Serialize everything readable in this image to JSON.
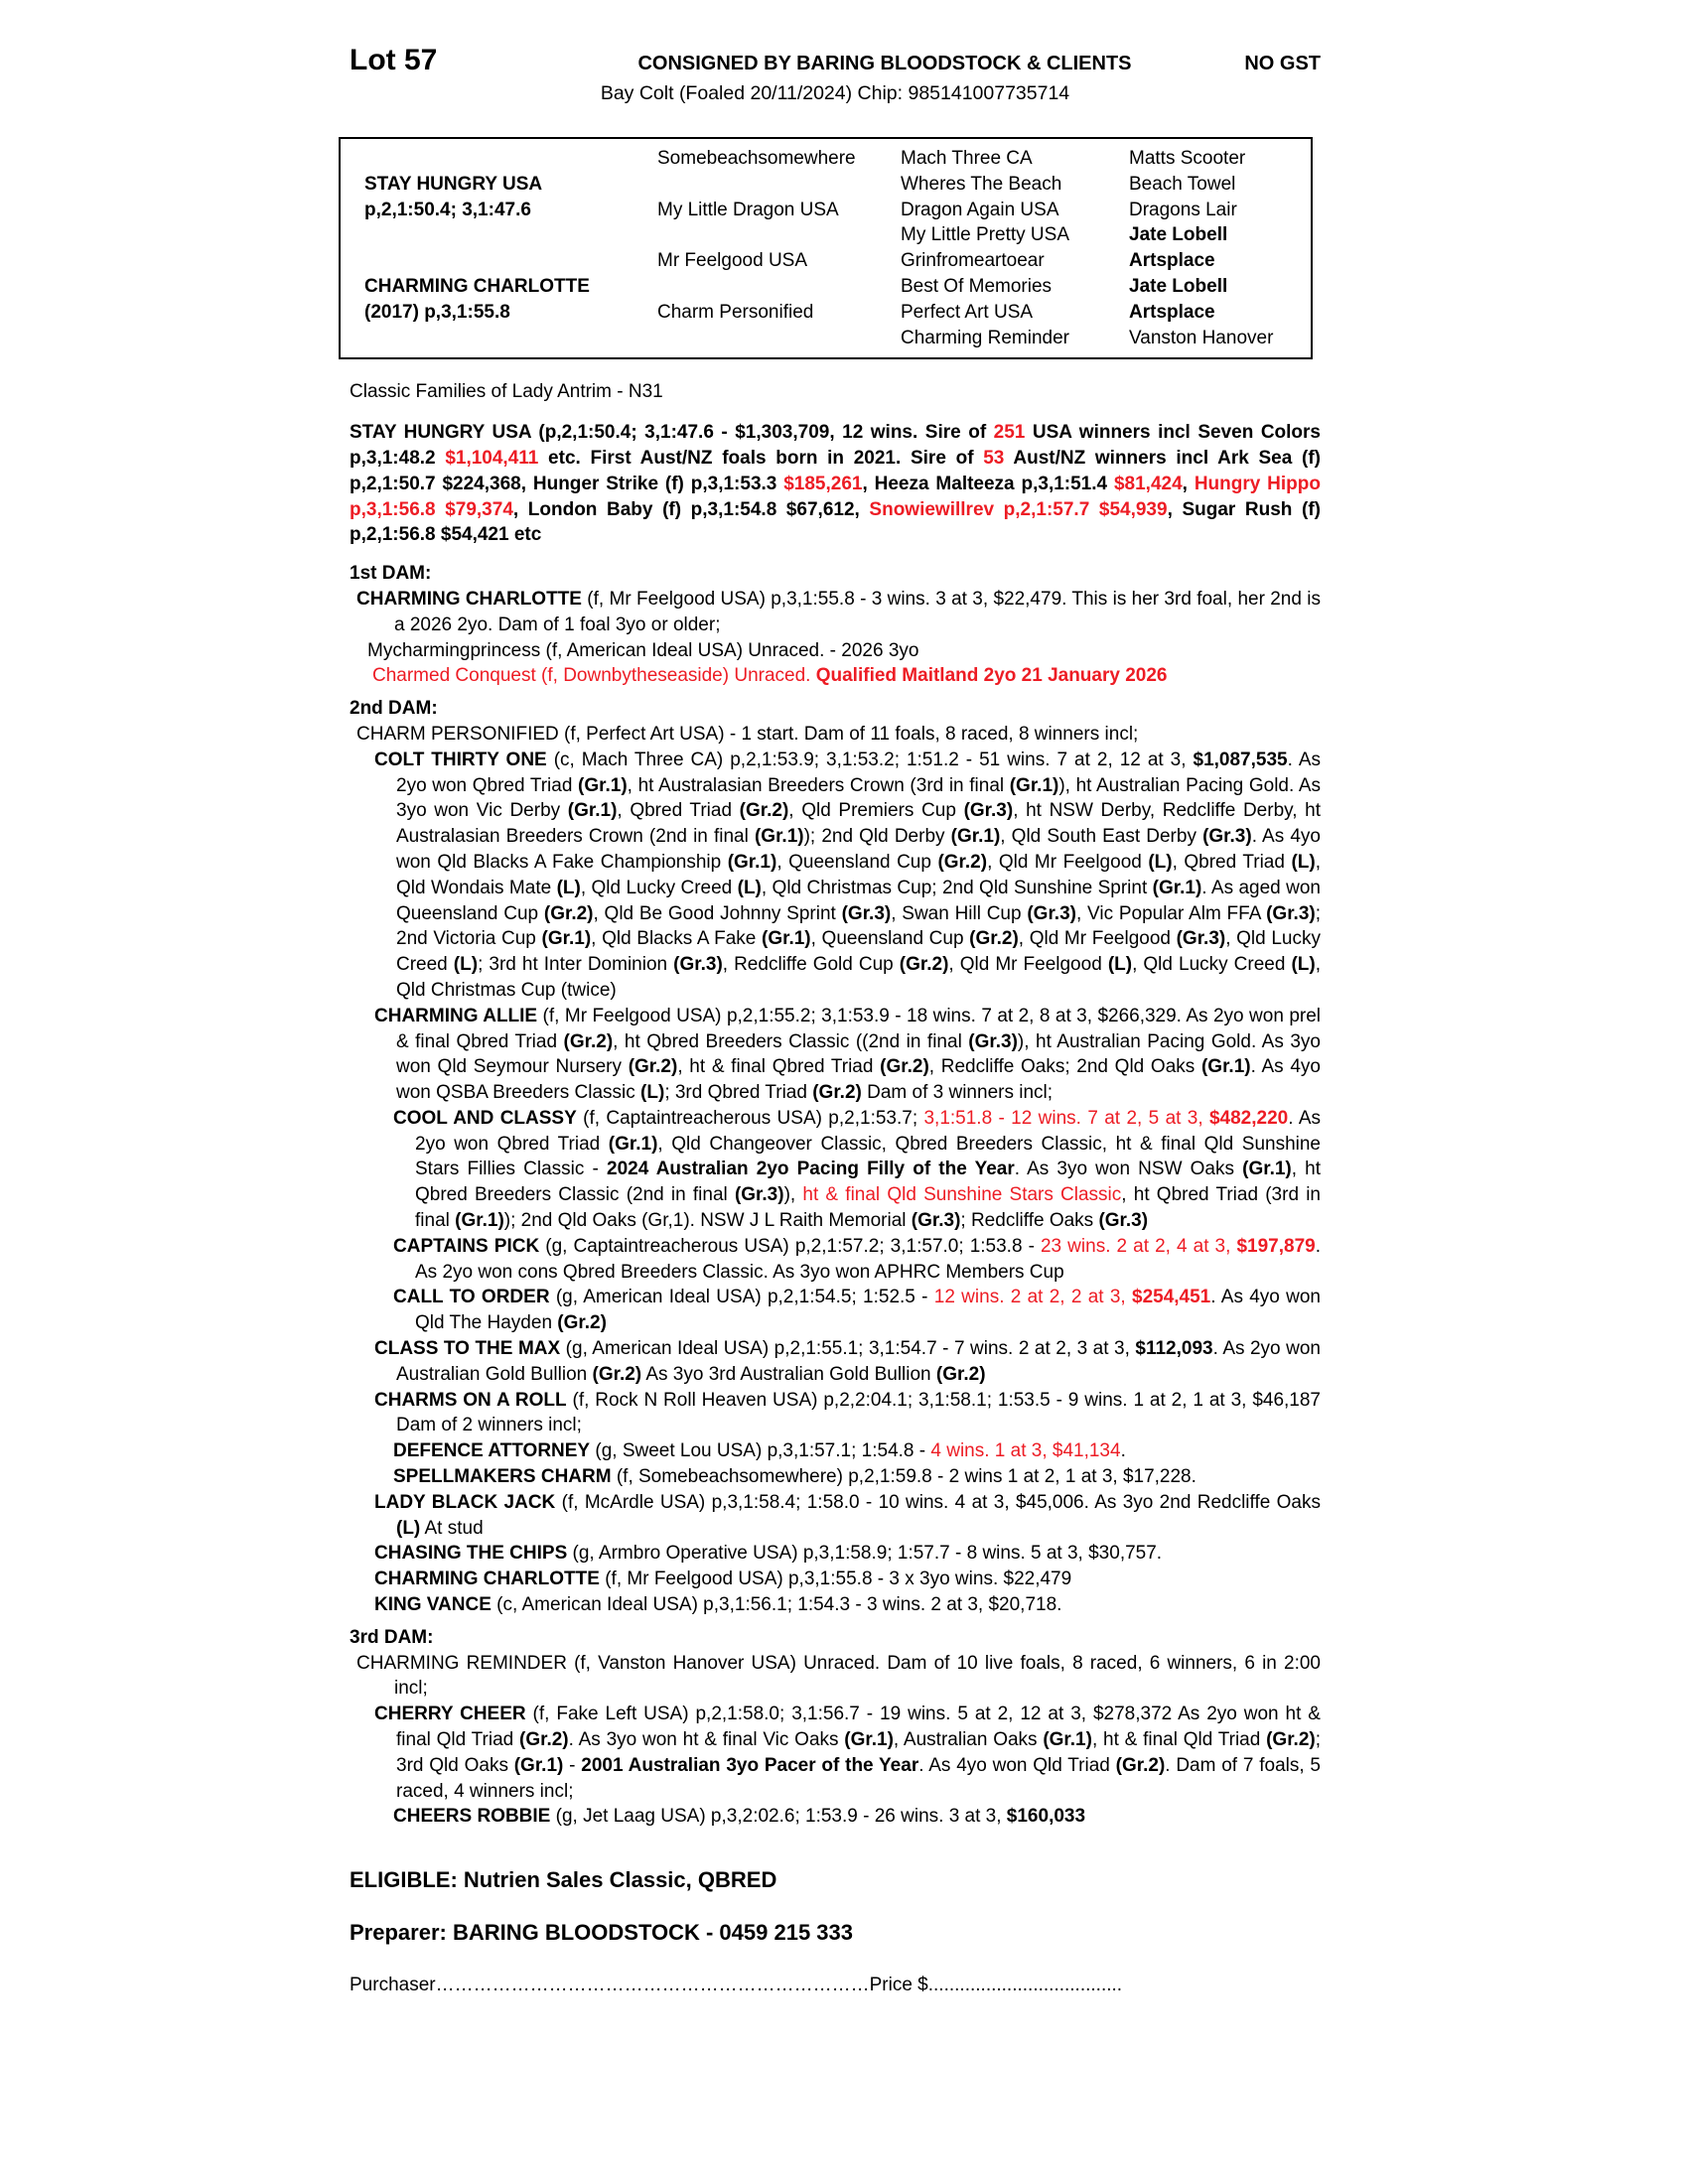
{
  "colors": {
    "red": "#ed1c24",
    "text": "#000000",
    "background": "#ffffff"
  },
  "header": {
    "lot": "Lot 57",
    "consignor": "CONSIGNED BY BARING BLOODSTOCK & CLIENTS",
    "gst": "NO GST",
    "description": "Bay Colt (Foaled 20/11/2024) Chip: 985141007735714"
  },
  "pedigree_table": {
    "rows": [
      [
        {
          "t": ""
        },
        {
          "t": "Somebeachsomewhere"
        },
        {
          "t": "Mach Three CA"
        },
        {
          "t": "Matts Scooter"
        }
      ],
      [
        {
          "t": "STAY HUNGRY USA",
          "b": true
        },
        {
          "t": ""
        },
        {
          "t": "Wheres The Beach"
        },
        {
          "t": "Beach Towel"
        }
      ],
      [
        {
          "t": "p,2,1:50.4; 3,1:47.6",
          "b": true
        },
        {
          "t": "My Little Dragon USA"
        },
        {
          "t": "Dragon Again USA"
        },
        {
          "t": "Dragons Lair"
        }
      ],
      [
        {
          "t": ""
        },
        {
          "t": ""
        },
        {
          "t": "My Little Pretty USA"
        },
        {
          "t": "Jate Lobell",
          "b": true
        }
      ],
      [
        {
          "t": ""
        },
        {
          "t": "Mr Feelgood USA"
        },
        {
          "t": "Grinfromeartoear"
        },
        {
          "t": "Artsplace",
          "b": true
        }
      ],
      [
        {
          "t": "CHARMING CHARLOTTE",
          "b": true
        },
        {
          "t": ""
        },
        {
          "t": "Best Of Memories"
        },
        {
          "t": "Jate Lobell",
          "b": true
        }
      ],
      [
        {
          "t": "(2017) p,3,1:55.8",
          "b": true
        },
        {
          "t": "Charm Personified"
        },
        {
          "t": "Perfect Art USA"
        },
        {
          "t": "Artsplace",
          "b": true
        }
      ],
      [
        {
          "t": ""
        },
        {
          "t": ""
        },
        {
          "t": "Charming Reminder"
        },
        {
          "t": "Vanston Hanover"
        }
      ]
    ]
  },
  "body": [
    {
      "name": "classic-families-line",
      "cls": "families",
      "runs": [
        {
          "t": "Classic Families of Lady Antrim - N31"
        }
      ]
    },
    {
      "name": "sire-summary",
      "cls": "sirepara j",
      "runs": [
        {
          "t": "STAY HUNGRY USA (p,2,1:50.4; 3,1:47.6 - $1,303,709, 12 wins. Sire of "
        },
        {
          "t": "251",
          "r": true
        },
        {
          "t": " USA winners incl Seven Colors p,3,1:48.2 "
        },
        {
          "t": "$1,104,411",
          "r": true
        },
        {
          "t": " etc. First Aust/NZ foals born in 2021. Sire of "
        },
        {
          "t": "53",
          "r": true
        },
        {
          "t": " Aust/NZ winners incl Ark Sea (f) p,2,1:50.7 $224,368, Hunger Strike (f) p,3,1:53.3 "
        },
        {
          "t": "$185,261",
          "r": true
        },
        {
          "t": ", Heeza Malteeza p,3,1:51.4 "
        },
        {
          "t": "$81,424",
          "r": true
        },
        {
          "t": ", "
        },
        {
          "t": "Hungry Hippo p,3,1:56.8 $79,374",
          "r": true
        },
        {
          "t": ", London Baby (f) p,3,1:54.8 $67,612, "
        },
        {
          "t": "Snowiewillrev p,2,1:57.7 $54,939",
          "r": true
        },
        {
          "t": ", Sugar Rush (f) p,2,1:56.8 $54,421 etc"
        }
      ]
    },
    {
      "name": "dam1-heading",
      "cls": "damhead gap-top",
      "runs": [
        {
          "t": "1st DAM:"
        }
      ]
    },
    {
      "name": "entry-charming-charlotte-dam",
      "cls": "i-l1 j",
      "runs": [
        {
          "t": "CHARMING CHARLOTTE",
          "b": true
        },
        {
          "t": " (f, Mr Feelgood USA) p,3,1:55.8 - 3 wins. 3 at 3, $22,479. This is her 3rd foal, her 2nd is a 2026 2yo. Dam of 1 foal 3yo or older;"
        }
      ]
    },
    {
      "name": "entry-mycharmingprincess",
      "cls": "i-l1a",
      "runs": [
        {
          "t": "Mycharmingprincess (f, American Ideal USA) Unraced. - 2026 3yo"
        }
      ]
    },
    {
      "name": "entry-charmed-conquest",
      "cls": "i-l1b",
      "runs": [
        {
          "t": "Charmed Conquest (f, Downbytheseaside) Unraced. ",
          "r": true
        },
        {
          "t": "Qualified Maitland 2yo 21 January 2026",
          "r": true,
          "b": true
        }
      ]
    },
    {
      "name": "dam2-heading",
      "cls": "damhead gap-top",
      "runs": [
        {
          "t": "2nd DAM:"
        }
      ]
    },
    {
      "name": "entry-charm-personified",
      "cls": "i-l1",
      "runs": [
        {
          "t": "CHARM PERSONIFIED (f, Perfect Art USA) - 1 start. Dam of 11 foals, 8 raced, 8 winners incl;"
        }
      ]
    },
    {
      "name": "entry-colt-thirty-one",
      "cls": "i-l2 j",
      "runs": [
        {
          "t": "COLT THIRTY ONE",
          "b": true
        },
        {
          "t": " (c, Mach Three CA) p,2,1:53.9; 3,1:53.2; 1:51.2 - 51 wins. 7 at 2, 12 at 3, "
        },
        {
          "t": "$1,087,535",
          "b": true
        },
        {
          "t": ". As 2yo won Qbred Triad "
        },
        {
          "t": "(Gr.1)",
          "b": true
        },
        {
          "t": ", ht Australasian Breeders Crown (3rd in final "
        },
        {
          "t": "(Gr.1)",
          "b": true
        },
        {
          "t": "), ht Australian Pacing Gold. As 3yo won Vic Derby "
        },
        {
          "t": "(Gr.1)",
          "b": true
        },
        {
          "t": ", Qbred Triad "
        },
        {
          "t": "(Gr.2)",
          "b": true
        },
        {
          "t": ", Qld Premiers Cup "
        },
        {
          "t": "(Gr.3)",
          "b": true
        },
        {
          "t": ", ht NSW Derby, Redcliffe Derby, ht Australasian Breeders Crown (2nd in final "
        },
        {
          "t": "(Gr.1)",
          "b": true
        },
        {
          "t": "); 2nd Qld Derby "
        },
        {
          "t": "(Gr.1)",
          "b": true
        },
        {
          "t": ", Qld South East Derby "
        },
        {
          "t": "(Gr.3)",
          "b": true
        },
        {
          "t": ". As 4yo won Qld Blacks A Fake Championship "
        },
        {
          "t": "(Gr.1)",
          "b": true
        },
        {
          "t": ", Queensland Cup "
        },
        {
          "t": "(Gr.2)",
          "b": true
        },
        {
          "t": ", Qld Mr Feelgood "
        },
        {
          "t": "(L)",
          "b": true
        },
        {
          "t": ", Qbred Triad "
        },
        {
          "t": "(L)",
          "b": true
        },
        {
          "t": ", Qld Wondais Mate "
        },
        {
          "t": "(L)",
          "b": true
        },
        {
          "t": ", Qld Lucky Creed "
        },
        {
          "t": "(L)",
          "b": true
        },
        {
          "t": ", Qld Christmas Cup; 2nd Qld Sunshine Sprint "
        },
        {
          "t": "(Gr.1)",
          "b": true
        },
        {
          "t": ". As aged won Queensland Cup "
        },
        {
          "t": "(Gr.2)",
          "b": true
        },
        {
          "t": ", Qld Be Good Johnny Sprint "
        },
        {
          "t": "(Gr.3)",
          "b": true
        },
        {
          "t": ", Swan Hill Cup "
        },
        {
          "t": "(Gr.3)",
          "b": true
        },
        {
          "t": ", Vic Popular Alm FFA "
        },
        {
          "t": "(Gr.3)",
          "b": true
        },
        {
          "t": "; 2nd Victoria Cup "
        },
        {
          "t": "(Gr.1)",
          "b": true
        },
        {
          "t": ", Qld Blacks A Fake "
        },
        {
          "t": "(Gr.1)",
          "b": true
        },
        {
          "t": ", Queensland Cup "
        },
        {
          "t": "(Gr.2)",
          "b": true
        },
        {
          "t": ", Qld Mr Feelgood "
        },
        {
          "t": "(Gr.3)",
          "b": true
        },
        {
          "t": ", Qld Lucky Creed "
        },
        {
          "t": "(L)",
          "b": true
        },
        {
          "t": "; 3rd ht Inter Dominion "
        },
        {
          "t": "(Gr.3)",
          "b": true
        },
        {
          "t": ", Redcliffe Gold Cup "
        },
        {
          "t": "(Gr.2)",
          "b": true
        },
        {
          "t": ", Qld Mr Feelgood "
        },
        {
          "t": "(L)",
          "b": true
        },
        {
          "t": ", Qld Lucky Creed "
        },
        {
          "t": "(L)",
          "b": true
        },
        {
          "t": ", Qld Christmas Cup (twice)"
        }
      ]
    },
    {
      "name": "entry-charming-allie",
      "cls": "i-l2 j",
      "runs": [
        {
          "t": "CHARMING ALLIE",
          "b": true
        },
        {
          "t": " (f, Mr Feelgood USA) p,2,1:55.2; 3,1:53.9 - 18 wins. 7 at 2, 8 at 3, $266,329. As 2yo won prel & final Qbred Triad "
        },
        {
          "t": "(Gr.2)",
          "b": true
        },
        {
          "t": ", ht Qbred Breeders Classic ((2nd in final "
        },
        {
          "t": "(Gr.3)",
          "b": true
        },
        {
          "t": "), ht Australian Pacing Gold. As 3yo won Qld Seymour Nursery "
        },
        {
          "t": "(Gr.2)",
          "b": true
        },
        {
          "t": ", ht & final Qbred Triad "
        },
        {
          "t": "(Gr.2)",
          "b": true
        },
        {
          "t": ", Redcliffe Oaks; 2nd Qld Oaks "
        },
        {
          "t": "(Gr.1)",
          "b": true
        },
        {
          "t": ". As 4yo won QSBA Breeders Classic "
        },
        {
          "t": "(L)",
          "b": true
        },
        {
          "t": "; 3rd Qbred Triad "
        },
        {
          "t": "(Gr.2)",
          "b": true
        },
        {
          "t": " Dam of 3 winners incl;"
        }
      ]
    },
    {
      "name": "entry-cool-and-classy",
      "cls": "i-l3 j",
      "runs": [
        {
          "t": "COOL AND CLASSY",
          "b": true
        },
        {
          "t": " (f, Captaintreacherous USA) p,2,1:53.7; "
        },
        {
          "t": "3,1:51.8 - 12 wins. 7 at 2, 5 at 3, ",
          "r": true
        },
        {
          "t": "$482,220",
          "r": true,
          "b": true
        },
        {
          "t": ". As 2yo won Qbred Triad "
        },
        {
          "t": "(Gr.1)",
          "b": true
        },
        {
          "t": ", Qld Changeover Classic, Qbred Breeders Classic, ht & final Qld Sunshine Stars Fillies Classic - "
        },
        {
          "t": "2024 Australian 2yo Pacing Filly of the Year",
          "b": true
        },
        {
          "t": ". As 3yo won NSW Oaks "
        },
        {
          "t": "(Gr.1)",
          "b": true
        },
        {
          "t": ", ht Qbred Breeders Classic (2nd in final "
        },
        {
          "t": "(Gr.3)",
          "b": true
        },
        {
          "t": "), "
        },
        {
          "t": "ht & final Qld Sunshine Stars Classic",
          "r": true
        },
        {
          "t": ", ht Qbred Triad (3rd in final "
        },
        {
          "t": "(Gr.1)",
          "b": true
        },
        {
          "t": "); 2nd Qld Oaks (Gr,1). NSW J L Raith Memorial "
        },
        {
          "t": "(Gr.3)",
          "b": true
        },
        {
          "t": "; Redcliffe Oaks "
        },
        {
          "t": "(Gr.3)",
          "b": true
        }
      ]
    },
    {
      "name": "entry-captains-pick",
      "cls": "i-l3 j",
      "runs": [
        {
          "t": "CAPTAINS PICK",
          "b": true
        },
        {
          "t": " (g, Captaintreacherous USA) p,2,1:57.2; 3,1:57.0; 1:53.8 - "
        },
        {
          "t": "23 wins. 2 at 2, 4 at 3, ",
          "r": true
        },
        {
          "t": "$197,879",
          "r": true,
          "b": true
        },
        {
          "t": ". As 2yo won cons Qbred Breeders Classic. As 3yo won APHRC Members Cup"
        }
      ]
    },
    {
      "name": "entry-call-to-order",
      "cls": "i-l3 j",
      "runs": [
        {
          "t": "CALL TO ORDER",
          "b": true
        },
        {
          "t": " (g, American Ideal USA) p,2,1:54.5; 1:52.5 - "
        },
        {
          "t": "12 wins. 2 at 2, 2 at 3, ",
          "r": true
        },
        {
          "t": "$254,451",
          "r": true,
          "b": true
        },
        {
          "t": ". As 4yo won Qld The Hayden "
        },
        {
          "t": "(Gr.2)",
          "b": true
        }
      ]
    },
    {
      "name": "entry-class-to-the-max",
      "cls": "i-l2 j",
      "runs": [
        {
          "t": "CLASS TO THE MAX",
          "b": true
        },
        {
          "t": " (g, American Ideal USA) p,2,1:55.1; 3,1:54.7 - 7 wins. 2 at 2, 3 at 3, "
        },
        {
          "t": "$112,093",
          "b": true
        },
        {
          "t": ". As 2yo won Australian Gold Bullion "
        },
        {
          "t": "(Gr.2)",
          "b": true
        },
        {
          "t": " As 3yo 3rd Australian Gold Bullion "
        },
        {
          "t": "(Gr.2)",
          "b": true
        }
      ]
    },
    {
      "name": "entry-charms-on-a-roll",
      "cls": "i-l2 j",
      "runs": [
        {
          "t": "CHARMS ON A ROLL",
          "b": true
        },
        {
          "t": " (f, Rock N Roll Heaven USA) p,2,2:04.1; 3,1:58.1; 1:53.5 - 9 wins. 1 at 2, 1 at 3, $46,187 Dam of 2 winners incl;"
        }
      ]
    },
    {
      "name": "entry-defence-attorney",
      "cls": "i-l3",
      "runs": [
        {
          "t": "DEFENCE ATTORNEY",
          "b": true
        },
        {
          "t": " (g, Sweet Lou USA) p,3,1:57.1; 1:54.8 - "
        },
        {
          "t": "4 wins. 1 at 3, $41,134",
          "r": true
        },
        {
          "t": "."
        }
      ]
    },
    {
      "name": "entry-spellmakers-charm",
      "cls": "i-l3",
      "runs": [
        {
          "t": "SPELLMAKERS CHARM",
          "b": true
        },
        {
          "t": " (f, Somebeachsomewhere) p,2,1:59.8 - 2 wins 1 at 2, 1 at 3, $17,228."
        }
      ]
    },
    {
      "name": "entry-lady-black-jack",
      "cls": "i-l2 j",
      "runs": [
        {
          "t": "LADY BLACK JACK",
          "b": true
        },
        {
          "t": " (f, McArdle USA) p,3,1:58.4; 1:58.0 - 10 wins. 4 at 3, $45,006. As 3yo 2nd Redcliffe Oaks "
        },
        {
          "t": "(L)",
          "b": true
        },
        {
          "t": " At stud"
        }
      ]
    },
    {
      "name": "entry-chasing-the-chips",
      "cls": "i-l2",
      "runs": [
        {
          "t": "CHASING THE CHIPS",
          "b": true
        },
        {
          "t": " (g, Armbro Operative USA) p,3,1:58.9; 1:57.7 - 8 wins. 5 at 3, $30,757."
        }
      ]
    },
    {
      "name": "entry-charming-charlotte-2",
      "cls": "i-l2",
      "runs": [
        {
          "t": "CHARMING CHARLOTTE",
          "b": true
        },
        {
          "t": " (f, Mr Feelgood USA) p,3,1:55.8 - 3 x 3yo wins. $22,479"
        }
      ]
    },
    {
      "name": "entry-king-vance",
      "cls": "i-l2",
      "runs": [
        {
          "t": "KING VANCE",
          "b": true
        },
        {
          "t": " (c, American Ideal USA) p,3,1:56.1; 1:54.3 - 3 wins. 2 at 3, $20,718."
        }
      ]
    },
    {
      "name": "dam3-heading",
      "cls": "damhead gap-top",
      "runs": [
        {
          "t": "3rd DAM:"
        }
      ]
    },
    {
      "name": "entry-charming-reminder",
      "cls": "i-l1 j",
      "runs": [
        {
          "t": "CHARMING REMINDER (f, Vanston Hanover USA) Unraced. Dam of 10 live foals, 8 raced, 6 winners, 6 in 2:00 incl;"
        }
      ]
    },
    {
      "name": "entry-cherry-cheer",
      "cls": "i-l2 j",
      "runs": [
        {
          "t": "CHERRY CHEER",
          "b": true
        },
        {
          "t": " (f, Fake Left USA) p,2,1:58.0; 3,1:56.7 - 19 wins. 5 at 2, 12 at 3, $278,372 As 2yo won ht & final Qld Triad "
        },
        {
          "t": "(Gr.2)",
          "b": true
        },
        {
          "t": ". As 3yo won ht & final Vic Oaks "
        },
        {
          "t": "(Gr.1)",
          "b": true
        },
        {
          "t": ", Australian Oaks "
        },
        {
          "t": "(Gr.1)",
          "b": true
        },
        {
          "t": ", ht & final Qld Triad "
        },
        {
          "t": "(Gr.2)",
          "b": true
        },
        {
          "t": "; 3rd Qld Oaks "
        },
        {
          "t": "(Gr.1)",
          "b": true
        },
        {
          "t": " - "
        },
        {
          "t": "2001 Australian 3yo Pacer of the Year",
          "b": true
        },
        {
          "t": ". As 4yo won Qld Triad "
        },
        {
          "t": "(Gr.2)",
          "b": true
        },
        {
          "t": ". Dam of 7 foals, 5 raced, 4 winners incl;"
        }
      ]
    },
    {
      "name": "entry-cheers-robbie",
      "cls": "i-l3",
      "runs": [
        {
          "t": "CHEERS ROBBIE",
          "b": true
        },
        {
          "t": " (g, Jet Laag USA) p,3,2:02.6; 1:53.9 - 26 wins. 3 at 3, "
        },
        {
          "t": "$160,033",
          "b": true
        }
      ]
    }
  ],
  "footer": {
    "eligible": "ELIGIBLE: Nutrien Sales Classic, QBRED",
    "preparer": "Preparer: BARING BLOODSTOCK - 0459 215 333",
    "purchaser_label": "Purchaser",
    "purchaser_leader": "……………………………………………………………",
    "price_label": "Price $",
    "price_leader": "....................................."
  }
}
